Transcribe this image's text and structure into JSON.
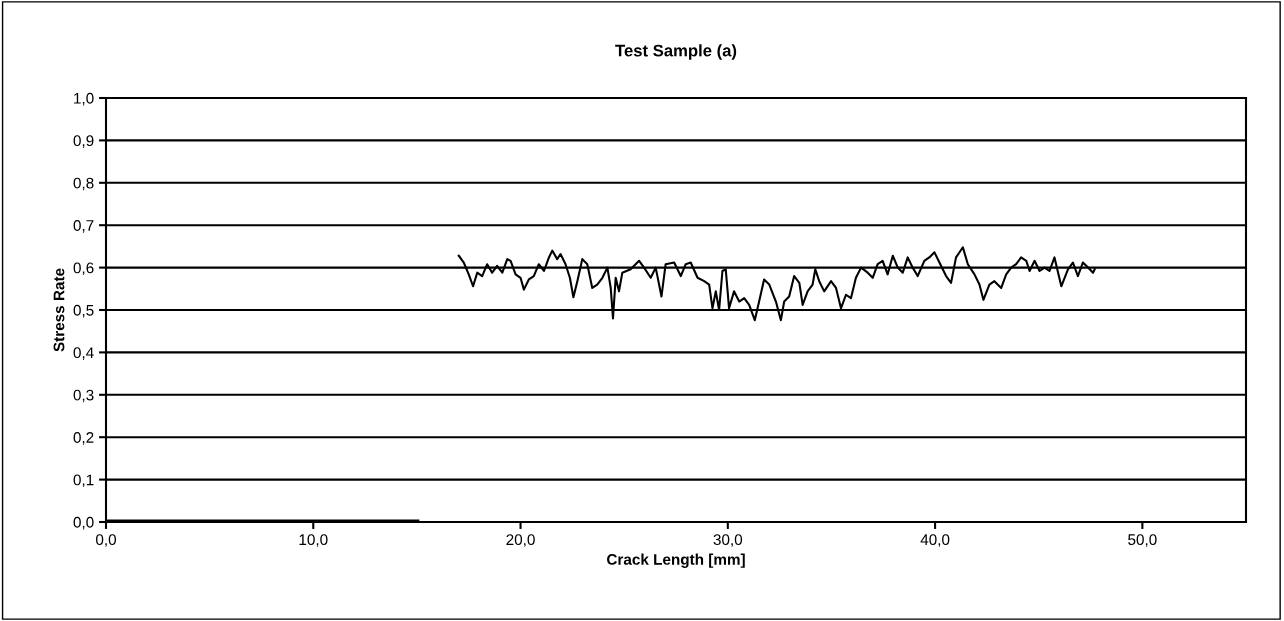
{
  "chart_data": {
    "type": "line",
    "title": "Test Sample (a)",
    "xlabel": "Crack Length [mm]",
    "ylabel": "Stress Rate",
    "xlim": [
      0,
      55
    ],
    "ylim": [
      0,
      1
    ],
    "xticks": [
      {
        "value": 0,
        "label": "0,0"
      },
      {
        "value": 10,
        "label": "10,0"
      },
      {
        "value": 20,
        "label": "20,0"
      },
      {
        "value": 30,
        "label": "30,0"
      },
      {
        "value": 40,
        "label": "40,0"
      },
      {
        "value": 50,
        "label": "50,0"
      }
    ],
    "yticks": [
      {
        "value": 0,
        "label": "0,0"
      },
      {
        "value": 0.1,
        "label": "0,1"
      },
      {
        "value": 0.2,
        "label": "0,2"
      },
      {
        "value": 0.3,
        "label": "0,3"
      },
      {
        "value": 0.4,
        "label": "0,4"
      },
      {
        "value": 0.5,
        "label": "0,5"
      },
      {
        "value": 0.6,
        "label": "0,6"
      },
      {
        "value": 0.7,
        "label": "0,7"
      },
      {
        "value": 0.8,
        "label": "0,8"
      },
      {
        "value": 0.9,
        "label": "0,9"
      },
      {
        "value": 1.0,
        "label": "1,0"
      }
    ],
    "grid": "y",
    "marker": "none",
    "line_style": "solid",
    "series": [
      {
        "color": "#000000",
        "x": [
          0,
          15
        ],
        "values": [
          0,
          0
        ]
      },
      {
        "color": "#000000",
        "x": [
          17.02,
          17.26,
          17.5,
          17.71,
          17.91,
          18.15,
          18.39,
          18.63,
          18.87,
          19.12,
          19.36,
          19.52,
          19.76,
          20.0,
          20.16,
          20.4,
          20.64,
          20.88,
          21.13,
          21.37,
          21.53,
          21.77,
          21.93,
          22.17,
          22.38,
          22.55,
          22.74,
          22.98,
          23.22,
          23.46,
          23.7,
          23.95,
          24.19,
          24.35,
          24.46,
          24.59,
          24.75,
          24.91,
          25.31,
          25.72,
          25.96,
          26.28,
          26.52,
          26.8,
          27.0,
          27.41,
          27.73,
          27.97,
          28.21,
          28.54,
          28.86,
          29.1,
          29.26,
          29.42,
          29.58,
          29.74,
          29.9,
          30.06,
          30.3,
          30.55,
          30.79,
          31.03,
          31.3,
          31.51,
          31.75,
          32.0,
          32.32,
          32.56,
          32.72,
          32.96,
          33.2,
          33.45,
          33.61,
          33.85,
          34.09,
          34.22,
          34.41,
          34.65,
          34.98,
          35.22,
          35.46,
          35.7,
          35.94,
          36.18,
          36.43,
          36.75,
          36.99,
          37.23,
          37.47,
          37.71,
          37.96,
          38.2,
          38.44,
          38.68,
          38.92,
          39.16,
          39.48,
          39.72,
          39.97,
          40.21,
          40.53,
          40.77,
          41.01,
          41.34,
          41.58,
          41.9,
          42.14,
          42.33,
          42.62,
          42.86,
          43.19,
          43.43,
          43.67,
          43.91,
          44.15,
          44.4,
          44.56,
          44.8,
          45.04,
          45.28,
          45.52,
          45.76,
          46.09,
          46.41,
          46.65,
          46.89,
          47.13,
          47.38,
          47.62,
          47.7
        ],
        "values": [
          0.628,
          0.612,
          0.584,
          0.556,
          0.588,
          0.58,
          0.608,
          0.588,
          0.604,
          0.588,
          0.62,
          0.616,
          0.584,
          0.576,
          0.548,
          0.572,
          0.58,
          0.608,
          0.592,
          0.624,
          0.64,
          0.62,
          0.632,
          0.608,
          0.576,
          0.53,
          0.568,
          0.62,
          0.608,
          0.552,
          0.56,
          0.576,
          0.6,
          0.552,
          0.48,
          0.576,
          0.544,
          0.588,
          0.596,
          0.616,
          0.6,
          0.576,
          0.6,
          0.532,
          0.608,
          0.612,
          0.58,
          0.608,
          0.612,
          0.576,
          0.568,
          0.56,
          0.504,
          0.544,
          0.5,
          0.592,
          0.596,
          0.504,
          0.544,
          0.52,
          0.528,
          0.512,
          0.476,
          0.52,
          0.572,
          0.56,
          0.52,
          0.476,
          0.52,
          0.532,
          0.58,
          0.564,
          0.512,
          0.544,
          0.56,
          0.596,
          0.568,
          0.544,
          0.568,
          0.552,
          0.504,
          0.536,
          0.528,
          0.576,
          0.6,
          0.588,
          0.576,
          0.608,
          0.616,
          0.584,
          0.628,
          0.6,
          0.588,
          0.624,
          0.6,
          0.58,
          0.616,
          0.624,
          0.636,
          0.612,
          0.58,
          0.564,
          0.624,
          0.648,
          0.608,
          0.584,
          0.56,
          0.524,
          0.56,
          0.568,
          0.552,
          0.584,
          0.6,
          0.608,
          0.624,
          0.616,
          0.592,
          0.616,
          0.592,
          0.6,
          0.592,
          0.624,
          0.556,
          0.596,
          0.612,
          0.58,
          0.612,
          0.6,
          0.588,
          0.596
        ]
      }
    ]
  }
}
